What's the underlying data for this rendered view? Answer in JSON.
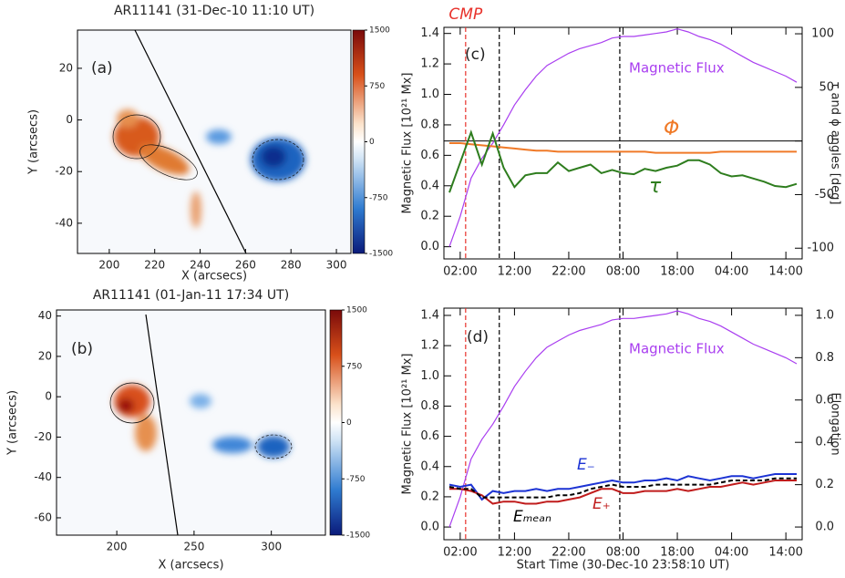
{
  "chart_data": [
    {
      "type": "image",
      "title": "AR11141 (31-Dec-10 11:10 UT)",
      "panel": "(a)",
      "x_label": "X (arcsecs)",
      "y_label": "Y (arcsecs)",
      "xlim": [
        186,
        306.4
      ],
      "xticks": [
        200,
        220,
        240,
        260,
        280,
        300
      ],
      "ylim": [
        -51.7,
        34.8
      ],
      "yticks": [
        20,
        0,
        -20,
        -40
      ],
      "colorbar": {
        "lim": [
          -1500,
          1500
        ],
        "ticks": [
          1500,
          750,
          0,
          -750,
          -1500
        ]
      }
    },
    {
      "type": "image",
      "title": "AR11141 (01-Jan-11 17:34 UT)",
      "panel": "(b)",
      "x_label": "X (arcsecs)",
      "y_label": "Y (arcsecs)",
      "xlim": [
        161,
        335
      ],
      "xticks": [
        200,
        250,
        300
      ],
      "ylim": [
        -68.6,
        43
      ],
      "yticks": [
        40,
        20,
        0,
        -20,
        -40,
        -60
      ],
      "colorbar": {
        "lim": [
          -1500,
          1500
        ],
        "ticks": [
          1500,
          750,
          0,
          -750,
          -1500
        ]
      }
    },
    {
      "type": "line",
      "panel": "(c)",
      "y_label": "Magnetic Flux [10²¹ Mx]",
      "y2_label": "τ and ϕ angles [deg]",
      "xlim": [
        -1,
        65
      ],
      "xticks": [
        {
          "value": 2,
          "label": "02:00"
        },
        {
          "value": 12,
          "label": "12:00"
        },
        {
          "value": 22,
          "label": "22:00"
        },
        {
          "value": 32,
          "label": "08:00"
        },
        {
          "value": 42,
          "label": "18:00"
        },
        {
          "value": 52,
          "label": "04:00"
        },
        {
          "value": 62,
          "label": "14:00"
        }
      ],
      "ylim": [
        -0.08,
        1.44
      ],
      "yticks": [
        {
          "value": 0,
          "label": "0.0"
        },
        0.2,
        0.4,
        0.6,
        0.8,
        {
          "value": 1,
          "label": "1.0"
        },
        1.2,
        1.4
      ],
      "y2lim": [
        -110,
        106
      ],
      "y2ticks": [
        -100,
        -50,
        0,
        50,
        100
      ],
      "vlines": [
        {
          "x": 3,
          "color": "#e8322b",
          "label": "CMP"
        },
        {
          "x": 9.2,
          "color": "#000000"
        },
        {
          "x": 31.4,
          "color": "#000000"
        }
      ],
      "hlines": [
        {
          "y": 0,
          "axis": "y2",
          "color": "#000000"
        }
      ],
      "x": [
        0,
        2,
        4,
        6,
        8,
        10,
        12,
        14,
        16,
        18,
        20,
        22,
        24,
        26,
        28,
        30,
        32,
        34,
        36,
        38,
        40,
        42,
        44,
        46,
        48,
        50,
        52,
        54,
        56,
        58,
        60,
        62,
        64
      ],
      "series": [
        {
          "name": "Magnetic Flux",
          "color": "#a93ef0",
          "values": [
            0,
            0.2,
            0.45,
            0.58,
            0.68,
            0.8,
            0.93,
            1.03,
            1.12,
            1.19,
            1.23,
            1.27,
            1.3,
            1.32,
            1.34,
            1.37,
            1.38,
            1.38,
            1.39,
            1.4,
            1.41,
            1.43,
            1.41,
            1.38,
            1.36,
            1.33,
            1.29,
            1.25,
            1.21,
            1.18,
            1.15,
            1.12,
            1.08
          ]
        },
        {
          "name": "Φ",
          "color": "#f07a28",
          "axis": "y2",
          "values": [
            -2,
            -2,
            -3,
            -4,
            -5,
            -6,
            -7,
            -8,
            -9,
            -9,
            -10,
            -10,
            -10,
            -10,
            -10,
            -10,
            -10,
            -10,
            -10,
            -11,
            -11,
            -11,
            -11,
            -11,
            -11,
            -10,
            -10,
            -10,
            -10,
            -10,
            -10,
            -10,
            -10
          ]
        },
        {
          "name": "τ",
          "color": "#2e7d1e",
          "axis": "y2",
          "values": [
            -48,
            -20,
            8,
            -22,
            7,
            -25,
            -43,
            -32,
            -30,
            -30,
            -20,
            -28,
            -25,
            -22,
            -30,
            -27,
            -30,
            -31,
            -26,
            -28,
            -25,
            -23,
            -18,
            -18,
            -22,
            -30,
            -33,
            -32,
            -35,
            -38,
            -42,
            -43,
            -40
          ]
        }
      ]
    },
    {
      "type": "line",
      "panel": "(d)",
      "y_label": "Magnetic Flux [10²¹ Mx]",
      "y2_label": "Elongation",
      "x_label": "Start Time (30-Dec-10 23:58:10 UT)",
      "xlim": [
        -1,
        65
      ],
      "xticks": [
        {
          "value": 2,
          "label": "02:00"
        },
        {
          "value": 12,
          "label": "12:00"
        },
        {
          "value": 22,
          "label": "22:00"
        },
        {
          "value": 32,
          "label": "08:00"
        },
        {
          "value": 42,
          "label": "18:00"
        },
        {
          "value": 52,
          "label": "04:00"
        },
        {
          "value": 62,
          "label": "14:00"
        }
      ],
      "ylim": [
        -0.084,
        1.448
      ],
      "yticks": [
        {
          "value": 0,
          "label": "0.0"
        },
        0.2,
        0.4,
        0.6,
        0.8,
        {
          "value": 1,
          "label": "1.0"
        },
        1.2,
        1.4
      ],
      "y2lim": [
        -0.06,
        1.034
      ],
      "y2ticks": [
        {
          "value": 0,
          "label": "0.0"
        },
        0.2,
        0.4,
        0.6,
        0.8,
        {
          "value": 1,
          "label": "1.0"
        }
      ],
      "vlines": [
        {
          "x": 3,
          "color": "#e8322b"
        },
        {
          "x": 9.2,
          "color": "#000000"
        },
        {
          "x": 31.4,
          "color": "#000000"
        }
      ],
      "x": [
        0,
        2,
        4,
        6,
        8,
        10,
        12,
        14,
        16,
        18,
        20,
        22,
        24,
        26,
        28,
        30,
        32,
        34,
        36,
        38,
        40,
        42,
        44,
        46,
        48,
        50,
        52,
        54,
        56,
        58,
        60,
        62,
        64
      ],
      "series": [
        {
          "name": "Magnetic Flux",
          "color": "#a93ef0",
          "values": [
            0,
            0.2,
            0.45,
            0.58,
            0.68,
            0.8,
            0.93,
            1.03,
            1.12,
            1.19,
            1.23,
            1.27,
            1.3,
            1.32,
            1.34,
            1.37,
            1.38,
            1.38,
            1.39,
            1.4,
            1.41,
            1.43,
            1.41,
            1.38,
            1.36,
            1.33,
            1.29,
            1.25,
            1.21,
            1.18,
            1.15,
            1.12,
            1.08
          ]
        },
        {
          "name": "E₋",
          "color": "#1c33d4",
          "axis": "y2",
          "values": [
            0.2,
            0.19,
            0.2,
            0.13,
            0.17,
            0.16,
            0.17,
            0.17,
            0.18,
            0.17,
            0.18,
            0.18,
            0.19,
            0.2,
            0.21,
            0.22,
            0.21,
            0.21,
            0.22,
            0.22,
            0.23,
            0.22,
            0.24,
            0.23,
            0.22,
            0.23,
            0.24,
            0.24,
            0.23,
            0.24,
            0.25,
            0.25,
            0.25
          ]
        },
        {
          "name": "E₊",
          "color": "#c01c1c",
          "axis": "y2",
          "values": [
            0.18,
            0.18,
            0.17,
            0.15,
            0.11,
            0.12,
            0.12,
            0.11,
            0.11,
            0.12,
            0.12,
            0.13,
            0.14,
            0.16,
            0.18,
            0.18,
            0.16,
            0.16,
            0.17,
            0.17,
            0.17,
            0.18,
            0.17,
            0.18,
            0.19,
            0.19,
            0.2,
            0.21,
            0.2,
            0.21,
            0.22,
            0.22,
            0.22
          ]
        },
        {
          "name": "Eₘₑₐₙ",
          "color": "#000000",
          "axis": "y2",
          "style": "dashed",
          "values": [
            0.19,
            0.18,
            0.18,
            0.14,
            0.14,
            0.14,
            0.14,
            0.14,
            0.14,
            0.14,
            0.15,
            0.15,
            0.16,
            0.18,
            0.19,
            0.2,
            0.19,
            0.19,
            0.19,
            0.2,
            0.2,
            0.2,
            0.2,
            0.2,
            0.2,
            0.21,
            0.22,
            0.22,
            0.22,
            0.22,
            0.23,
            0.23,
            0.23
          ]
        }
      ]
    }
  ]
}
